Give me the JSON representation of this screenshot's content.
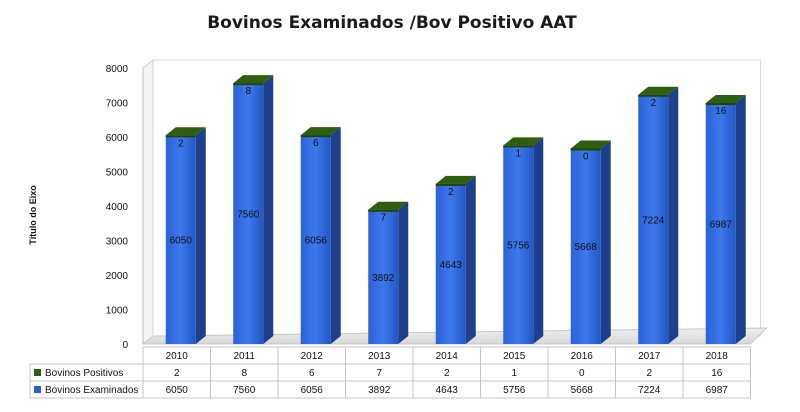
{
  "chart_data": {
    "type": "bar",
    "title": "Bovinos Examinados /Bov Positivo AAT",
    "ylabel": "Título do Eixo",
    "xlabel": "",
    "ylim": [
      0,
      8000
    ],
    "yticks": [
      0,
      1000,
      2000,
      3000,
      4000,
      5000,
      6000,
      7000,
      8000
    ],
    "grid": false,
    "legend": "table-below",
    "categories": [
      "2010",
      "2011",
      "2012",
      "2013",
      "2014",
      "2015",
      "2016",
      "2017",
      "2018"
    ],
    "series": [
      {
        "name": "Bovinos Positivos",
        "values": [
          2,
          8,
          6,
          7,
          2,
          1,
          0,
          2,
          16
        ],
        "color": "#2e5e0e"
      },
      {
        "name": "Bovinos Examinados",
        "values": [
          6050,
          7560,
          6056,
          3892,
          4643,
          5756,
          5668,
          7224,
          6987
        ],
        "color": "#2a5fd0"
      }
    ]
  }
}
